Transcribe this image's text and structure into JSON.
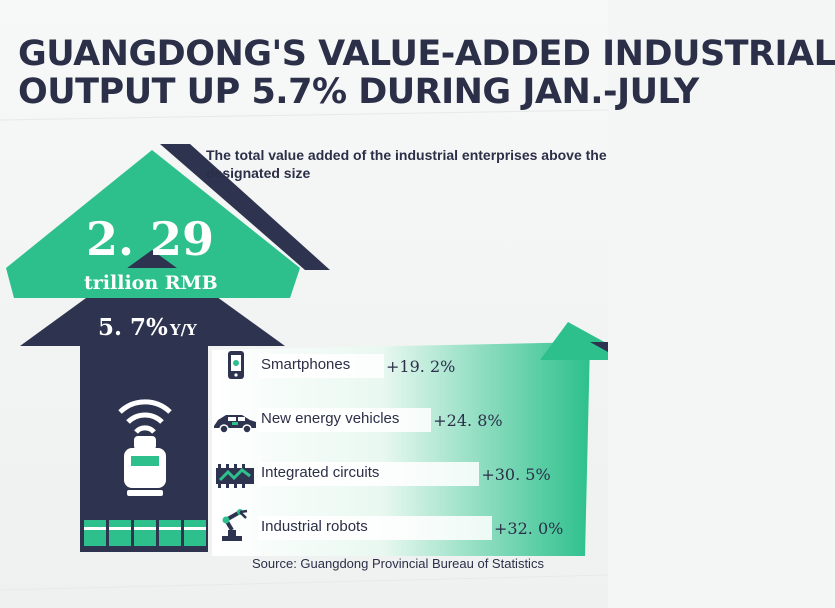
{
  "title": {
    "line1": "GUANGDONG'S VALUE-ADDED INDUSTRIAL",
    "line2": "OUTPUT UP 5.7% DURING JAN.-JULY"
  },
  "subtitle": "The total value added of the industrial enterprises above the designated size",
  "headline": {
    "value": "2. 29",
    "unit": "trillion  RMB",
    "growth": "5. 7%",
    "growth_suffix": "Y/Y"
  },
  "source": "Source: Guangdong Provincial Bureau of Statistics",
  "colors": {
    "green": "#2dc08d",
    "navy": "#2e3350",
    "text": "#2b2f47"
  },
  "chart_data": {
    "type": "bar",
    "categories": [
      "Smartphones",
      "New energy vehicles",
      "Integrated circuits",
      "Industrial robots"
    ],
    "values": [
      19.2,
      24.8,
      30.5,
      32.0
    ],
    "value_labels": [
      "+19. 2%",
      "+24. 8%",
      "+30. 5%",
      "+32. 0%"
    ],
    "icons": [
      "smartphone-icon",
      "car-icon",
      "chip-icon",
      "robot-arm-icon"
    ],
    "xlabel": "",
    "ylabel": "",
    "legend": "none"
  }
}
